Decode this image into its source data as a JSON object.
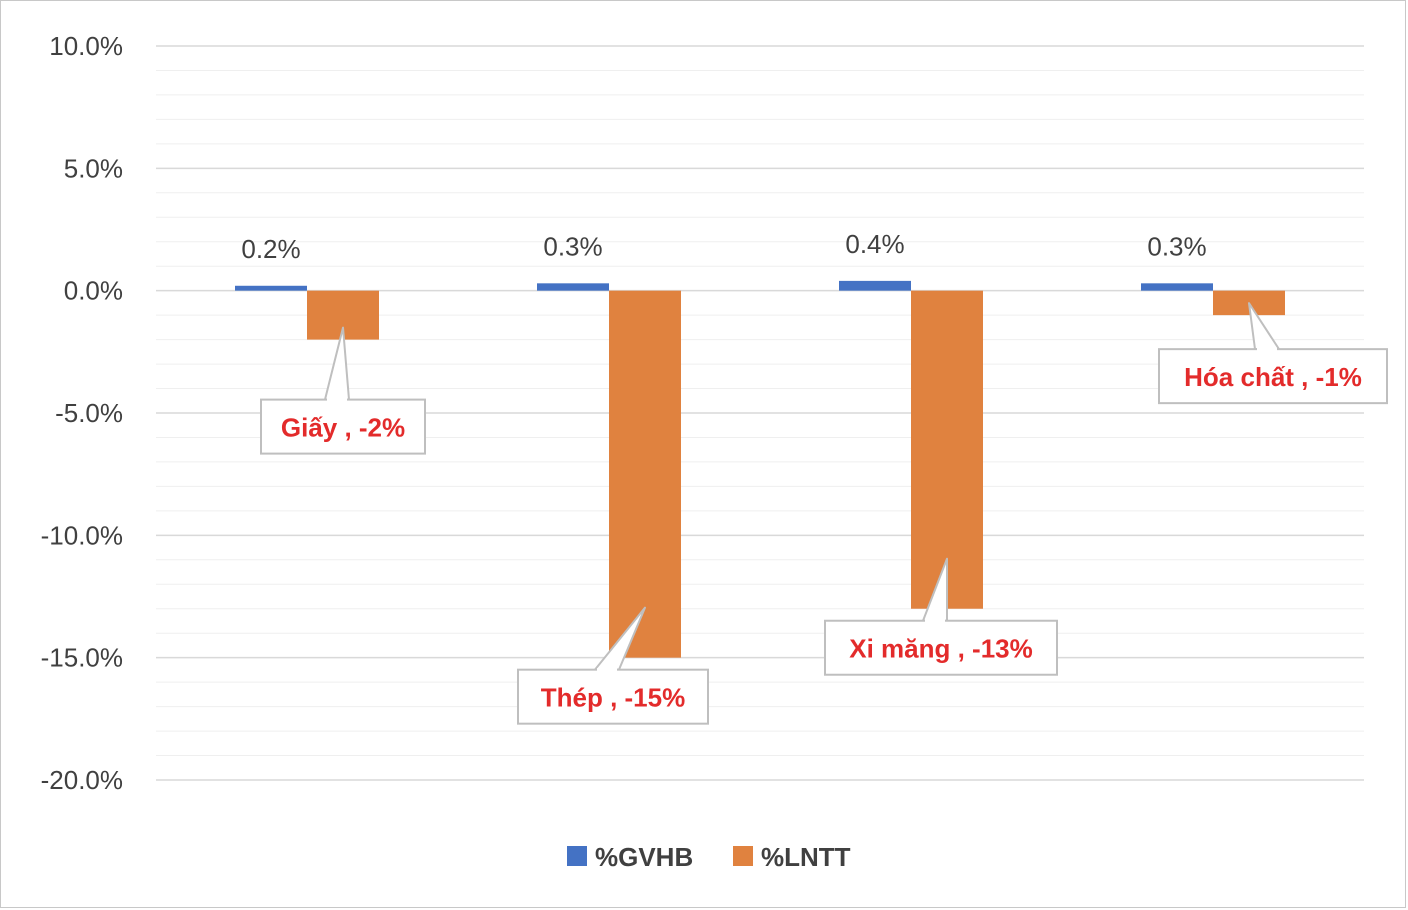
{
  "chart_data": {
    "type": "bar",
    "categories": [
      "Giấy",
      "Thép",
      "Xi măng",
      "Hóa chất"
    ],
    "series": [
      {
        "name": "%GVHB",
        "values": [
          0.2,
          0.3,
          0.4,
          0.3
        ],
        "color": "#4472c4",
        "labels": [
          "0.2%",
          "0.3%",
          "0.4%",
          "0.3%"
        ]
      },
      {
        "name": "%LNTT",
        "values": [
          -2,
          -15,
          -13,
          -1
        ],
        "color": "#e0823f",
        "labels": [
          "Giấy , -2%",
          "Thép , -15%",
          "Xi măng , -13%",
          "Hóa chất , -1%"
        ]
      }
    ],
    "ylim": [
      -20,
      10
    ],
    "yticks": [
      10,
      5,
      0,
      -5,
      -10,
      -15,
      -20
    ],
    "ytick_labels": [
      "10.0%",
      "5.0%",
      "0.0%",
      "-5.0%",
      "-10.0%",
      "-15.0%",
      "-20.0%"
    ],
    "minor_gridlines": true,
    "legend_position": "bottom",
    "callout_color": "#e32b2b"
  }
}
